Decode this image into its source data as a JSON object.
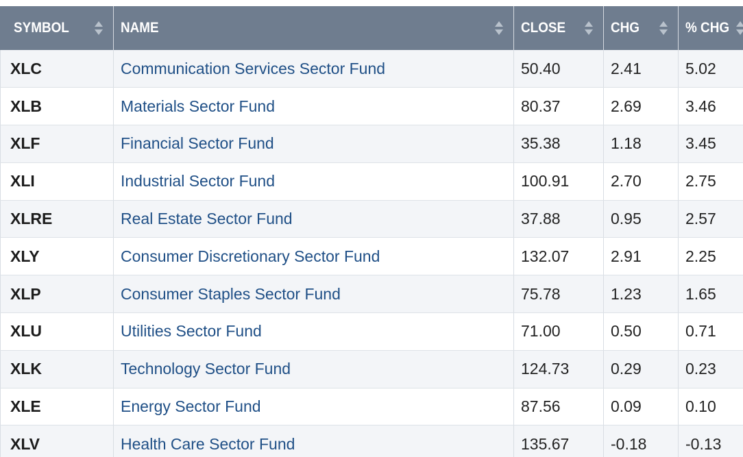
{
  "table": {
    "headers": [
      {
        "key": "symbol",
        "label": "SYMBOL"
      },
      {
        "key": "name",
        "label": "NAME"
      },
      {
        "key": "close",
        "label": "CLOSE"
      },
      {
        "key": "chg",
        "label": "CHG"
      },
      {
        "key": "pct_chg",
        "label": "% CHG"
      }
    ],
    "rows": [
      {
        "symbol": "XLC",
        "name": "Communication Services Sector Fund",
        "close": "50.40",
        "chg": "2.41",
        "pct_chg": "5.02"
      },
      {
        "symbol": "XLB",
        "name": "Materials Sector Fund",
        "close": "80.37",
        "chg": "2.69",
        "pct_chg": "3.46"
      },
      {
        "symbol": "XLF",
        "name": "Financial Sector Fund",
        "close": "35.38",
        "chg": "1.18",
        "pct_chg": "3.45"
      },
      {
        "symbol": "XLI",
        "name": "Industrial Sector Fund",
        "close": "100.91",
        "chg": "2.70",
        "pct_chg": "2.75"
      },
      {
        "symbol": "XLRE",
        "name": "Real Estate Sector Fund",
        "close": "37.88",
        "chg": "0.95",
        "pct_chg": "2.57"
      },
      {
        "symbol": "XLY",
        "name": "Consumer Discretionary Sector Fund",
        "close": "132.07",
        "chg": "2.91",
        "pct_chg": "2.25"
      },
      {
        "symbol": "XLP",
        "name": "Consumer Staples Sector Fund",
        "close": "75.78",
        "chg": "1.23",
        "pct_chg": "1.65"
      },
      {
        "symbol": "XLU",
        "name": "Utilities Sector Fund",
        "close": "71.00",
        "chg": "0.50",
        "pct_chg": "0.71"
      },
      {
        "symbol": "XLK",
        "name": "Technology Sector Fund",
        "close": "124.73",
        "chg": "0.29",
        "pct_chg": "0.23"
      },
      {
        "symbol": "XLE",
        "name": "Energy Sector Fund",
        "close": "87.56",
        "chg": "0.09",
        "pct_chg": "0.10"
      },
      {
        "symbol": "XLV",
        "name": "Health Care Sector Fund",
        "close": "135.67",
        "chg": "-0.18",
        "pct_chg": "-0.13"
      }
    ]
  },
  "colors": {
    "header_bg": "#6f7d8f",
    "link": "#1f4f86",
    "row_alt": "#f3f5f8"
  },
  "icons": {
    "sort": "sort-arrows-icon"
  }
}
